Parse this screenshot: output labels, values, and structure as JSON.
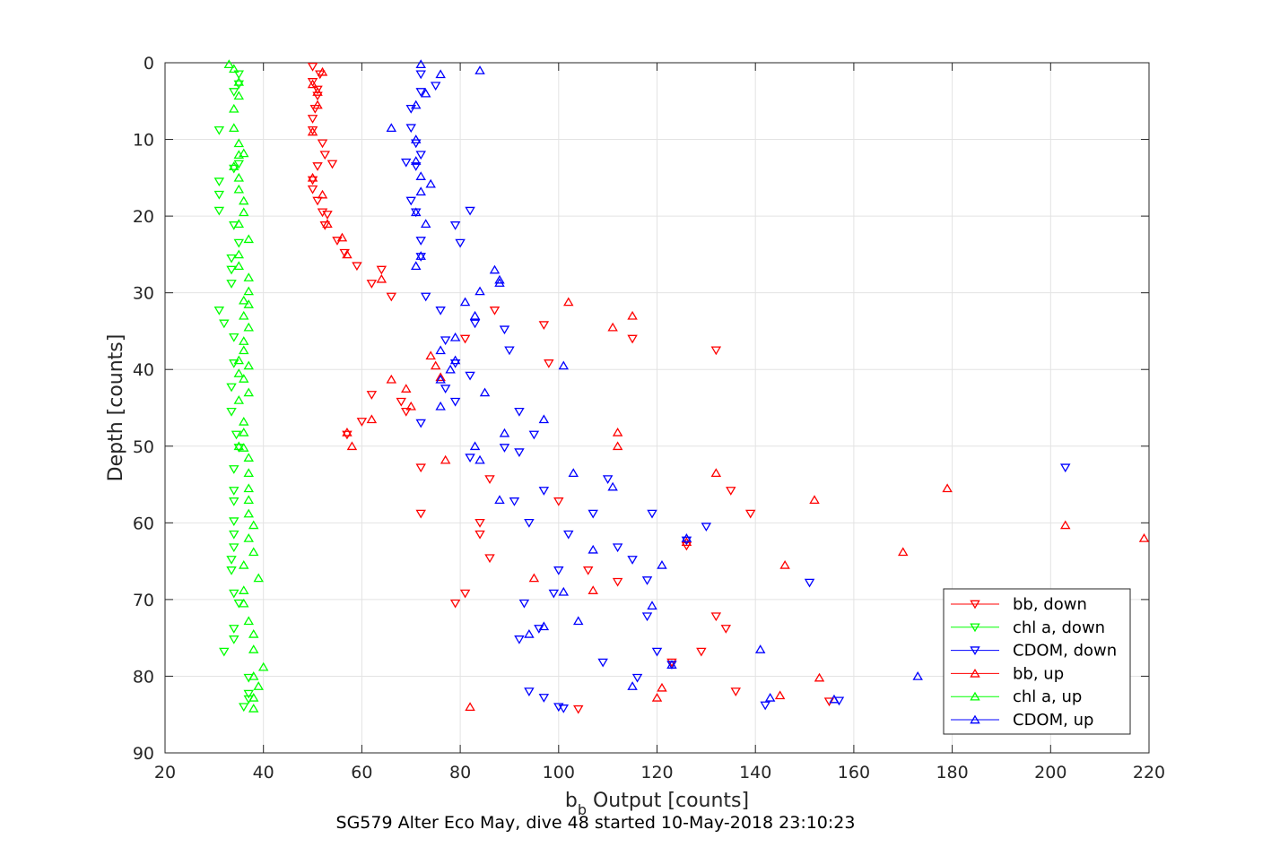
{
  "chart_data": {
    "type": "scatter",
    "title": "",
    "xlabel_main": "b",
    "xlabel_sub": "b",
    "xlabel_rest": " Output [counts]",
    "ylabel": "Depth [counts]",
    "caption": "SG579 Alter Eco May, dive 48 started 10-May-2018 23:10:23",
    "xlim": [
      20,
      220
    ],
    "ylim": [
      0,
      90
    ],
    "y_reversed": true,
    "xticks": [
      "20",
      "40",
      "60",
      "80",
      "100",
      "120",
      "140",
      "160",
      "180",
      "200",
      "220"
    ],
    "yticks": [
      "0",
      "10",
      "20",
      "30",
      "40",
      "50",
      "60",
      "70",
      "80",
      "90"
    ],
    "grid": true,
    "legend_position": "bottom-right",
    "series": [
      {
        "name": "bb, down",
        "color": "#ff0000",
        "marker": "triangle-down",
        "points": [
          [
            50,
            0.5
          ],
          [
            51.5,
            1.5
          ],
          [
            50,
            2.5
          ],
          [
            51,
            3.5
          ],
          [
            51,
            4.3
          ],
          [
            50.5,
            6
          ],
          [
            50,
            7.3
          ],
          [
            50,
            8.8
          ],
          [
            52,
            10.5
          ],
          [
            52.5,
            12
          ],
          [
            51,
            13.5
          ],
          [
            54,
            13.2
          ],
          [
            50,
            15.3
          ],
          [
            50,
            16.5
          ],
          [
            51,
            18
          ],
          [
            52,
            19.5
          ],
          [
            53,
            19.8
          ],
          [
            52.5,
            21.2
          ],
          [
            55,
            23.2
          ],
          [
            56.5,
            24.8
          ],
          [
            59,
            26.5
          ],
          [
            62,
            28.8
          ],
          [
            66,
            30.5
          ],
          [
            64,
            27
          ],
          [
            81,
            36
          ],
          [
            98,
            39.2
          ],
          [
            115,
            36
          ],
          [
            97,
            34.2
          ],
          [
            132,
            37.5
          ],
          [
            87,
            32.3
          ],
          [
            62,
            43.3
          ],
          [
            68,
            44.2
          ],
          [
            69,
            45.5
          ],
          [
            60,
            46.8
          ],
          [
            57,
            48.5
          ],
          [
            72,
            52.8
          ],
          [
            86,
            54.3
          ],
          [
            100,
            57.2
          ],
          [
            72,
            58.8
          ],
          [
            84,
            60
          ],
          [
            84,
            61.5
          ],
          [
            86,
            64.6
          ],
          [
            106,
            66.2
          ],
          [
            81,
            69.2
          ],
          [
            79,
            70.5
          ],
          [
            112,
            67.7
          ],
          [
            132,
            72.2
          ],
          [
            134,
            73.8
          ],
          [
            129,
            76.8
          ],
          [
            123,
            78.2
          ],
          [
            136,
            82
          ],
          [
            104,
            84.3
          ],
          [
            155,
            83.3
          ],
          [
            135,
            55.8
          ],
          [
            139,
            58.8
          ],
          [
            126,
            63
          ]
        ]
      },
      {
        "name": "chl a, down",
        "color": "#00ff00",
        "marker": "triangle-down",
        "points": [
          [
            35,
            1.5
          ],
          [
            35,
            2.8
          ],
          [
            34,
            3.8
          ],
          [
            31,
            8.8
          ],
          [
            35,
            13.2
          ],
          [
            34,
            13.8
          ],
          [
            31,
            15.5
          ],
          [
            31,
            17.2
          ],
          [
            31,
            19.3
          ],
          [
            34,
            21.2
          ],
          [
            35,
            23.5
          ],
          [
            33.5,
            25.5
          ],
          [
            33.5,
            27
          ],
          [
            33.5,
            28.8
          ],
          [
            31,
            32.3
          ],
          [
            32,
            34
          ],
          [
            34,
            35.8
          ],
          [
            34,
            39.2
          ],
          [
            33.5,
            42.3
          ],
          [
            33.5,
            45.5
          ],
          [
            34.5,
            48.5
          ],
          [
            35,
            50.2
          ],
          [
            34,
            53
          ],
          [
            34,
            55.8
          ],
          [
            34,
            57.2
          ],
          [
            34,
            59.8
          ],
          [
            34,
            61.5
          ],
          [
            34,
            63.2
          ],
          [
            33.5,
            64.8
          ],
          [
            33.5,
            66.2
          ],
          [
            34,
            69.2
          ],
          [
            35,
            70.5
          ],
          [
            34,
            73.8
          ],
          [
            34,
            75.2
          ],
          [
            32,
            76.8
          ],
          [
            37,
            80.2
          ],
          [
            37,
            82.3
          ],
          [
            37,
            83
          ],
          [
            36,
            84
          ]
        ]
      },
      {
        "name": "CDOM, down",
        "color": "#0000ff",
        "marker": "triangle-down",
        "points": [
          [
            72,
            1.5
          ],
          [
            72,
            3.8
          ],
          [
            75,
            3
          ],
          [
            70,
            6
          ],
          [
            70,
            8.5
          ],
          [
            71,
            10.5
          ],
          [
            72,
            12
          ],
          [
            71,
            13.5
          ],
          [
            69,
            13
          ],
          [
            70,
            18
          ],
          [
            71,
            19.5
          ],
          [
            72,
            23.2
          ],
          [
            72,
            25.3
          ],
          [
            82,
            19.3
          ],
          [
            79,
            21.2
          ],
          [
            80,
            23.5
          ],
          [
            73,
            30.5
          ],
          [
            76,
            32.3
          ],
          [
            83,
            34
          ],
          [
            77,
            36.2
          ],
          [
            79,
            39.2
          ],
          [
            90,
            37.5
          ],
          [
            89,
            34.8
          ],
          [
            82,
            40.8
          ],
          [
            77,
            42.5
          ],
          [
            79,
            44.2
          ],
          [
            72,
            47
          ],
          [
            95,
            48.5
          ],
          [
            92,
            45.5
          ],
          [
            82,
            51.5
          ],
          [
            89,
            50.2
          ],
          [
            92,
            50.8
          ],
          [
            91,
            57.2
          ],
          [
            97,
            55.8
          ],
          [
            94,
            60
          ],
          [
            102,
            61.5
          ],
          [
            107,
            58.8
          ],
          [
            112,
            63.2
          ],
          [
            110,
            54.3
          ],
          [
            115,
            64.8
          ],
          [
            119,
            58.8
          ],
          [
            130,
            60.5
          ],
          [
            126,
            62.3
          ],
          [
            118,
            67.5
          ],
          [
            100,
            66.2
          ],
          [
            99,
            69.2
          ],
          [
            93,
            70.5
          ],
          [
            96,
            73.8
          ],
          [
            92,
            75.2
          ],
          [
            109,
            78.2
          ],
          [
            116,
            80.2
          ],
          [
            120,
            76.8
          ],
          [
            123,
            78.5
          ],
          [
            118,
            72.2
          ],
          [
            94,
            82
          ],
          [
            97,
            82.8
          ],
          [
            100,
            84
          ],
          [
            101,
            84.2
          ],
          [
            142,
            83.8
          ],
          [
            151,
            67.8
          ],
          [
            203,
            52.8
          ],
          [
            157,
            83.2
          ]
        ]
      },
      {
        "name": "bb, up",
        "color": "#ff0000",
        "marker": "triangle-up",
        "points": [
          [
            52,
            1.2
          ],
          [
            50,
            2.8
          ],
          [
            51,
            3.8
          ],
          [
            51,
            5.5
          ],
          [
            50,
            9
          ],
          [
            50,
            15
          ],
          [
            52,
            17.2
          ],
          [
            53,
            21
          ],
          [
            56,
            22.8
          ],
          [
            57,
            25
          ],
          [
            64,
            28.2
          ],
          [
            74,
            38.2
          ],
          [
            75,
            39.5
          ],
          [
            76,
            41
          ],
          [
            69,
            42.5
          ],
          [
            66,
            41.3
          ],
          [
            70,
            44.8
          ],
          [
            62,
            46.5
          ],
          [
            57,
            48.2
          ],
          [
            58,
            50
          ],
          [
            77,
            51.8
          ],
          [
            102,
            31.2
          ],
          [
            111,
            34.5
          ],
          [
            115,
            33
          ],
          [
            112,
            48.2
          ],
          [
            112,
            50
          ],
          [
            132,
            53.5
          ],
          [
            152,
            57
          ],
          [
            179,
            55.5
          ],
          [
            203,
            60.3
          ],
          [
            219,
            62
          ],
          [
            170,
            63.8
          ],
          [
            146,
            65.5
          ],
          [
            126,
            62.5
          ],
          [
            95,
            67.2
          ],
          [
            107,
            68.8
          ],
          [
            153,
            80.2
          ],
          [
            121,
            81.5
          ],
          [
            145,
            82.5
          ],
          [
            120,
            82.8
          ],
          [
            82,
            84
          ]
        ]
      },
      {
        "name": "chl a, up",
        "color": "#00ff00",
        "marker": "triangle-up",
        "points": [
          [
            33,
            0.2
          ],
          [
            34,
            0.8
          ],
          [
            35,
            2.5
          ],
          [
            35,
            4.3
          ],
          [
            34,
            6
          ],
          [
            34,
            8.5
          ],
          [
            35,
            10.5
          ],
          [
            35,
            12
          ],
          [
            36,
            11.8
          ],
          [
            34,
            13.5
          ],
          [
            35,
            15
          ],
          [
            35,
            16.5
          ],
          [
            36,
            18
          ],
          [
            36,
            19.5
          ],
          [
            35,
            21
          ],
          [
            37,
            23
          ],
          [
            35,
            25
          ],
          [
            35,
            26.5
          ],
          [
            37,
            28
          ],
          [
            37,
            29.8
          ],
          [
            36,
            31
          ],
          [
            37,
            31.5
          ],
          [
            36,
            33
          ],
          [
            37,
            34.5
          ],
          [
            36,
            36.3
          ],
          [
            36,
            37.5
          ],
          [
            35,
            38.8
          ],
          [
            37,
            39.5
          ],
          [
            35,
            40.5
          ],
          [
            36,
            41.2
          ],
          [
            37,
            43
          ],
          [
            35,
            44
          ],
          [
            36,
            46.8
          ],
          [
            36,
            48.2
          ],
          [
            35,
            50
          ],
          [
            36,
            50.2
          ],
          [
            37,
            51.5
          ],
          [
            37,
            53.5
          ],
          [
            37,
            55.5
          ],
          [
            37,
            57
          ],
          [
            37,
            58.8
          ],
          [
            38,
            60.3
          ],
          [
            37,
            62
          ],
          [
            38,
            63.8
          ],
          [
            36,
            65.5
          ],
          [
            39,
            67.2
          ],
          [
            36,
            68.8
          ],
          [
            36,
            70.5
          ],
          [
            37,
            72.8
          ],
          [
            38,
            74.5
          ],
          [
            38,
            76.5
          ],
          [
            40,
            78.8
          ],
          [
            38,
            80
          ],
          [
            39,
            81.3
          ],
          [
            38,
            82.8
          ],
          [
            38,
            84.2
          ]
        ]
      },
      {
        "name": "CDOM, up",
        "color": "#0000ff",
        "marker": "triangle-up",
        "points": [
          [
            72,
            0.2
          ],
          [
            84,
            1
          ],
          [
            76,
            1.5
          ],
          [
            73,
            4
          ],
          [
            71,
            5.5
          ],
          [
            66,
            8.5
          ],
          [
            71,
            10
          ],
          [
            71,
            12.8
          ],
          [
            72,
            14.8
          ],
          [
            74,
            15.8
          ],
          [
            72,
            16.8
          ],
          [
            71,
            19.5
          ],
          [
            73,
            21
          ],
          [
            72,
            25.2
          ],
          [
            71,
            26.5
          ],
          [
            87,
            27
          ],
          [
            88,
            28.3
          ],
          [
            88,
            28.7
          ],
          [
            84,
            29.8
          ],
          [
            81,
            31.2
          ],
          [
            83,
            33
          ],
          [
            79,
            35.8
          ],
          [
            76,
            37.5
          ],
          [
            79,
            38.8
          ],
          [
            78,
            40
          ],
          [
            76,
            41.3
          ],
          [
            85,
            43
          ],
          [
            76,
            44.8
          ],
          [
            97,
            46.5
          ],
          [
            89,
            48.3
          ],
          [
            83,
            50
          ],
          [
            84,
            51.8
          ],
          [
            101,
            39.5
          ],
          [
            103,
            53.5
          ],
          [
            88,
            57
          ],
          [
            111,
            55.3
          ],
          [
            126,
            62
          ],
          [
            107,
            63.5
          ],
          [
            121,
            65.5
          ],
          [
            101,
            69
          ],
          [
            104,
            72.8
          ],
          [
            119,
            70.8
          ],
          [
            97,
            73.5
          ],
          [
            94,
            74.5
          ],
          [
            123,
            78.5
          ],
          [
            115,
            81.3
          ],
          [
            141,
            76.5
          ],
          [
            143,
            82.8
          ],
          [
            173,
            80
          ],
          [
            156,
            83
          ]
        ]
      }
    ]
  }
}
